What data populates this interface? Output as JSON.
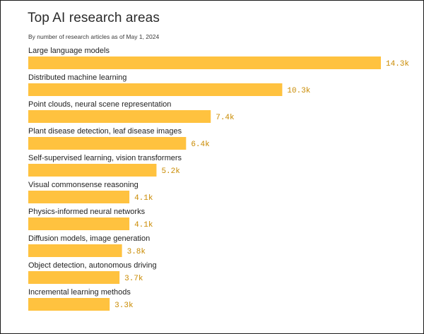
{
  "title": "Top AI research areas",
  "subtitle": "By number of research articles as of May 1, 2024",
  "colors": {
    "bar": "#FFC23F",
    "value_label": "#C98A00",
    "category_label": "#1f1f1f"
  },
  "chart_data": {
    "type": "bar",
    "orientation": "horizontal",
    "title": "Top AI research areas",
    "subtitle": "By number of research articles as of May 1, 2024",
    "categories": [
      "Large language models",
      "Distributed machine learning",
      "Point clouds, neural scene representation",
      "Plant disease detection, leaf disease images",
      "Self-supervised learning, vision transformers",
      "Visual commonsense reasoning",
      "Physics-informed neural networks",
      "Diffusion models, image generation",
      "Object detection, autonomous driving",
      "Incremental learning methods"
    ],
    "values": [
      14300,
      10300,
      7400,
      6400,
      5200,
      4100,
      4100,
      3800,
      3700,
      3300
    ],
    "value_labels": [
      "14.3k",
      "10.3k",
      "7.4k",
      "6.4k",
      "5.2k",
      "4.1k",
      "4.1k",
      "3.8k",
      "3.7k",
      "3.3k"
    ],
    "xlim": [
      0,
      14300
    ],
    "xlabel": "",
    "ylabel": "",
    "grid": false,
    "legend": "none"
  }
}
